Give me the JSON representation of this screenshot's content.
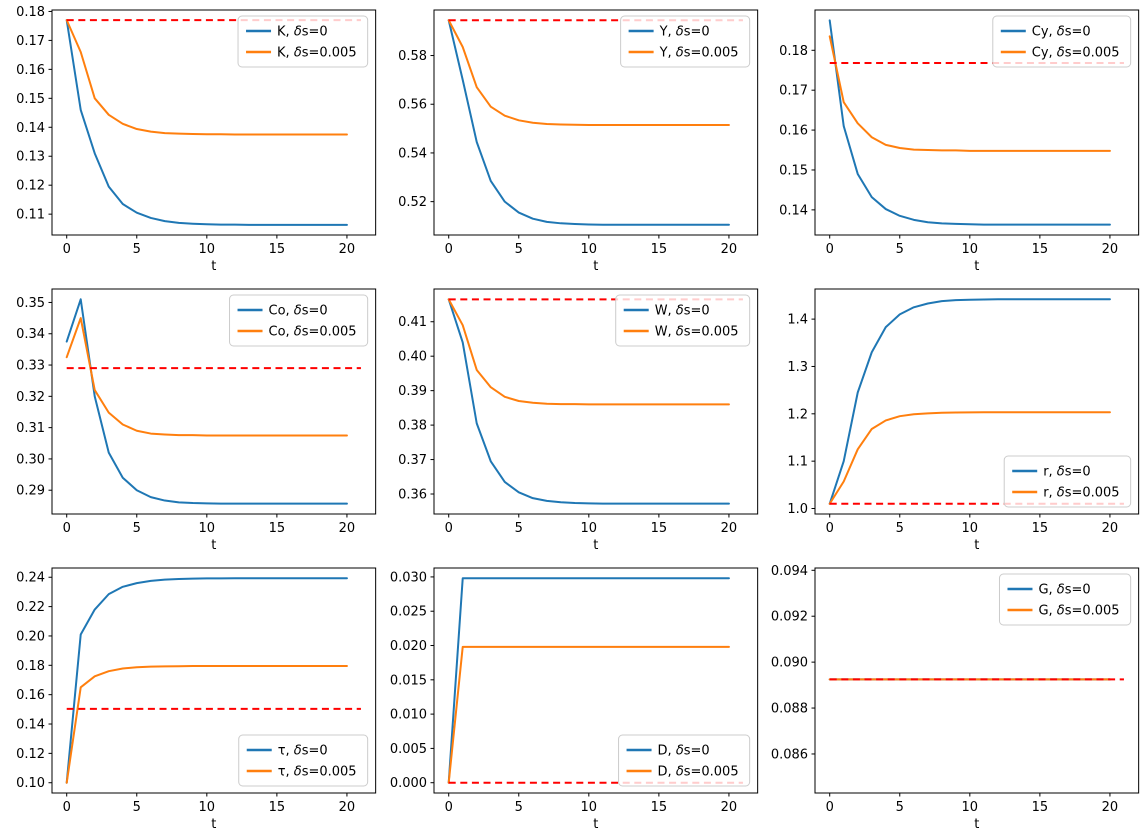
{
  "figure": {
    "background": "#ffffff",
    "xlabel": "t",
    "x": [
      0,
      1,
      2,
      3,
      4,
      5,
      6,
      7,
      8,
      9,
      10,
      11,
      12,
      13,
      14,
      15,
      16,
      17,
      18,
      19,
      20
    ],
    "xlim": [
      -1.05,
      22.05
    ],
    "xticks": [
      0,
      5,
      10,
      15,
      20
    ],
    "xtick_labels": [
      "0",
      "5",
      "10",
      "15",
      "20"
    ],
    "reference_extent": [
      0,
      21
    ],
    "colors": {
      "series_delta0": "#1f77b4",
      "series_delta005": "#ff7f0e",
      "reference": "#ff0000",
      "axis": "#000000",
      "legend_border": "#cccccc",
      "legend_fill_alpha": 0.8
    },
    "grid": "off",
    "rows": 3,
    "cols": 3
  },
  "chart_data": [
    {
      "type": "line",
      "variable": "K",
      "xlabel": "t",
      "legend_loc": "upper-right",
      "ylim": [
        0.1028,
        0.1805
      ],
      "ytick_values": [
        0.11,
        0.12,
        0.13,
        0.14,
        0.15,
        0.16,
        0.17,
        0.18
      ],
      "ytick_labels": [
        "0.11",
        "0.12",
        "0.13",
        "0.14",
        "0.15",
        "0.16",
        "0.17",
        "0.18"
      ],
      "reference_line": {
        "y": 0.177,
        "style": "dashed",
        "color": "#ff0000"
      },
      "series": [
        {
          "name": "K, δs=0",
          "color": "#1f77b4",
          "values": [
            0.177,
            0.146,
            0.131,
            0.1195,
            0.1135,
            0.1105,
            0.1087,
            0.1076,
            0.107,
            0.1067,
            0.1065,
            0.1064,
            0.1064,
            0.1063,
            0.1063,
            0.1063,
            0.1063,
            0.1063,
            0.1063,
            0.1063,
            0.1063
          ]
        },
        {
          "name": "K, δs=0.005",
          "color": "#ff7f0e",
          "values": [
            0.177,
            0.166,
            0.15,
            0.1443,
            0.1412,
            0.1394,
            0.1385,
            0.138,
            0.1378,
            0.1377,
            0.1376,
            0.1376,
            0.1375,
            0.1375,
            0.1375,
            0.1375,
            0.1375,
            0.1375,
            0.1375,
            0.1375,
            0.1375
          ]
        }
      ]
    },
    {
      "type": "line",
      "variable": "Y",
      "xlabel": "t",
      "legend_loc": "upper-right",
      "ylim": [
        0.5063,
        0.5987
      ],
      "ytick_values": [
        0.52,
        0.54,
        0.56,
        0.58
      ],
      "ytick_labels": [
        "0.52",
        "0.54",
        "0.56",
        "0.58"
      ],
      "reference_line": {
        "y": 0.5945,
        "style": "dashed",
        "color": "#ff0000"
      },
      "series": [
        {
          "name": "Y, δs=0",
          "color": "#1f77b4",
          "values": [
            0.5945,
            0.57,
            0.5445,
            0.5285,
            0.52,
            0.5155,
            0.513,
            0.5117,
            0.5111,
            0.5108,
            0.5106,
            0.5105,
            0.5105,
            0.5105,
            0.5105,
            0.5105,
            0.5105,
            0.5105,
            0.5105,
            0.5105,
            0.5105
          ]
        },
        {
          "name": "Y, δs=0.005",
          "color": "#ff7f0e",
          "values": [
            0.5945,
            0.5835,
            0.567,
            0.559,
            0.5553,
            0.5534,
            0.5524,
            0.5519,
            0.5517,
            0.5516,
            0.5515,
            0.5515,
            0.5515,
            0.5515,
            0.5515,
            0.5515,
            0.5515,
            0.5515,
            0.5515,
            0.5515,
            0.5515
          ]
        }
      ]
    },
    {
      "type": "line",
      "variable": "Cy",
      "xlabel": "t",
      "legend_loc": "upper-right",
      "ylim": [
        0.1337,
        0.1901
      ],
      "ytick_values": [
        0.14,
        0.15,
        0.16,
        0.17,
        0.18
      ],
      "ytick_labels": [
        "0.14",
        "0.15",
        "0.16",
        "0.17",
        "0.18"
      ],
      "reference_line": {
        "y": 0.1768,
        "style": "dashed",
        "color": "#ff0000"
      },
      "series": [
        {
          "name": "Cy, δs=0",
          "color": "#1f77b4",
          "values": [
            0.1875,
            0.161,
            0.149,
            0.1432,
            0.1402,
            0.1385,
            0.1375,
            0.1369,
            0.1366,
            0.1365,
            0.1364,
            0.1363,
            0.1363,
            0.1363,
            0.1363,
            0.1363,
            0.1363,
            0.1363,
            0.1363,
            0.1363,
            0.1363
          ]
        },
        {
          "name": "Cy, δs=0.005",
          "color": "#ff7f0e",
          "values": [
            0.1835,
            0.167,
            0.1617,
            0.1582,
            0.1563,
            0.1555,
            0.1551,
            0.155,
            0.1549,
            0.1549,
            0.1548,
            0.1548,
            0.1548,
            0.1548,
            0.1548,
            0.1548,
            0.1548,
            0.1548,
            0.1548,
            0.1548,
            0.1548
          ]
        }
      ]
    },
    {
      "type": "line",
      "variable": "Co",
      "xlabel": "t",
      "legend_loc": "upper-right",
      "ylim": [
        0.2824,
        0.3543
      ],
      "ytick_values": [
        0.29,
        0.3,
        0.31,
        0.32,
        0.33,
        0.34,
        0.35
      ],
      "ytick_labels": [
        "0.29",
        "0.30",
        "0.31",
        "0.32",
        "0.33",
        "0.34",
        "0.35"
      ],
      "reference_line": {
        "y": 0.329,
        "style": "dashed",
        "color": "#ff0000"
      },
      "series": [
        {
          "name": "Co, δs=0",
          "color": "#1f77b4",
          "values": [
            0.3375,
            0.351,
            0.32,
            0.302,
            0.294,
            0.29,
            0.2878,
            0.2867,
            0.2861,
            0.2859,
            0.2858,
            0.2857,
            0.2857,
            0.2857,
            0.2857,
            0.2857,
            0.2857,
            0.2857,
            0.2857,
            0.2857,
            0.2857
          ]
        },
        {
          "name": "Co, δs=0.005",
          "color": "#ff7f0e",
          "values": [
            0.3325,
            0.345,
            0.322,
            0.3148,
            0.311,
            0.309,
            0.3081,
            0.3078,
            0.3076,
            0.3076,
            0.3075,
            0.3075,
            0.3075,
            0.3075,
            0.3075,
            0.3075,
            0.3075,
            0.3075,
            0.3075,
            0.3075,
            0.3075
          ]
        }
      ]
    },
    {
      "type": "line",
      "variable": "W",
      "xlabel": "t",
      "legend_loc": "upper-right",
      "ylim": [
        0.3542,
        0.4195
      ],
      "ytick_values": [
        0.36,
        0.37,
        0.38,
        0.39,
        0.4,
        0.41
      ],
      "ytick_labels": [
        "0.36",
        "0.37",
        "0.38",
        "0.39",
        "0.40",
        "0.41"
      ],
      "reference_line": {
        "y": 0.4165,
        "style": "dashed",
        "color": "#ff0000"
      },
      "series": [
        {
          "name": "W, δs=0",
          "color": "#1f77b4",
          "values": [
            0.4165,
            0.404,
            0.3805,
            0.3695,
            0.3635,
            0.3605,
            0.3588,
            0.358,
            0.3576,
            0.3574,
            0.3573,
            0.3572,
            0.3572,
            0.3572,
            0.3572,
            0.3572,
            0.3572,
            0.3572,
            0.3572,
            0.3572,
            0.3572
          ]
        },
        {
          "name": "W, δs=0.005",
          "color": "#ff7f0e",
          "values": [
            0.4165,
            0.409,
            0.396,
            0.391,
            0.3882,
            0.387,
            0.3865,
            0.3862,
            0.3861,
            0.3861,
            0.386,
            0.386,
            0.386,
            0.386,
            0.386,
            0.386,
            0.386,
            0.386,
            0.386,
            0.386,
            0.386
          ]
        }
      ]
    },
    {
      "type": "line",
      "variable": "r",
      "xlabel": "t",
      "legend_loc": "lower-right",
      "ylim": [
        0.9884,
        1.4636
      ],
      "ytick_values": [
        1.0,
        1.1,
        1.2,
        1.3,
        1.4
      ],
      "ytick_labels": [
        "1.0",
        "1.1",
        "1.2",
        "1.3",
        "1.4"
      ],
      "reference_line": {
        "y": 1.01,
        "style": "dashed",
        "color": "#ff0000"
      },
      "series": [
        {
          "name": "r, δs=0",
          "color": "#1f77b4",
          "values": [
            1.01,
            1.1,
            1.245,
            1.33,
            1.383,
            1.41,
            1.425,
            1.433,
            1.438,
            1.44,
            1.441,
            1.4415,
            1.442,
            1.442,
            1.442,
            1.442,
            1.442,
            1.442,
            1.442,
            1.442,
            1.442
          ]
        },
        {
          "name": "r, δs=0.005",
          "color": "#ff7f0e",
          "values": [
            1.01,
            1.057,
            1.125,
            1.168,
            1.186,
            1.195,
            1.199,
            1.201,
            1.2022,
            1.2028,
            1.2031,
            1.2032,
            1.2033,
            1.2033,
            1.2033,
            1.2033,
            1.2033,
            1.2033,
            1.2033,
            1.2033,
            1.2033
          ]
        }
      ]
    },
    {
      "type": "line",
      "variable": "τ",
      "xlabel": "t",
      "legend_loc": "lower-right",
      "ylim": [
        0.093,
        0.2463
      ],
      "ytick_values": [
        0.1,
        0.12,
        0.14,
        0.16,
        0.18,
        0.2,
        0.22,
        0.24
      ],
      "ytick_labels": [
        "0.10",
        "0.12",
        "0.14",
        "0.16",
        "0.18",
        "0.20",
        "0.22",
        "0.24"
      ],
      "reference_line": {
        "y": 0.1503,
        "style": "dashed",
        "color": "#ff0000"
      },
      "series": [
        {
          "name": "τ, δs=0",
          "color": "#1f77b4",
          "values": [
            0.1,
            0.201,
            0.218,
            0.2285,
            0.2335,
            0.236,
            0.2375,
            0.2384,
            0.2388,
            0.2391,
            0.2392,
            0.2392,
            0.2393,
            0.2393,
            0.2393,
            0.2393,
            0.2393,
            0.2393,
            0.2393,
            0.2393,
            0.2393
          ]
        },
        {
          "name": "τ, δs=0.005",
          "color": "#ff7f0e",
          "values": [
            0.1,
            0.165,
            0.1725,
            0.176,
            0.1778,
            0.1787,
            0.1791,
            0.1793,
            0.1794,
            0.1795,
            0.1795,
            0.1795,
            0.1795,
            0.1795,
            0.1795,
            0.1795,
            0.1795,
            0.1795,
            0.1795,
            0.1795,
            0.1795
          ]
        }
      ]
    },
    {
      "type": "line",
      "variable": "D",
      "xlabel": "t",
      "legend_loc": "lower-right",
      "ylim": [
        -0.0015,
        0.0313
      ],
      "ytick_values": [
        0.0,
        0.005,
        0.01,
        0.015,
        0.02,
        0.025,
        0.03
      ],
      "ytick_labels": [
        "0.000",
        "0.005",
        "0.010",
        "0.015",
        "0.020",
        "0.025",
        "0.030"
      ],
      "reference_line": {
        "y": 0.0,
        "style": "dashed",
        "color": "#ff0000"
      },
      "series": [
        {
          "name": "D, δs=0",
          "color": "#1f77b4",
          "values": [
            0,
            0.0298,
            0.0298,
            0.0298,
            0.0298,
            0.0298,
            0.0298,
            0.0298,
            0.0298,
            0.0298,
            0.0298,
            0.0298,
            0.0298,
            0.0298,
            0.0298,
            0.0298,
            0.0298,
            0.0298,
            0.0298,
            0.0298,
            0.0298
          ]
        },
        {
          "name": "D, δs=0.005",
          "color": "#ff7f0e",
          "values": [
            0,
            0.0198,
            0.0198,
            0.0198,
            0.0198,
            0.0198,
            0.0198,
            0.0198,
            0.0198,
            0.0198,
            0.0198,
            0.0198,
            0.0198,
            0.0198,
            0.0198,
            0.0198,
            0.0198,
            0.0198,
            0.0198,
            0.0198,
            0.0198
          ]
        }
      ]
    },
    {
      "type": "line",
      "variable": "G",
      "xlabel": "t",
      "legend_loc": "upper-right",
      "ylim": [
        0.0843,
        0.0941
      ],
      "ytick_values": [
        0.086,
        0.088,
        0.09,
        0.092,
        0.094
      ],
      "ytick_labels": [
        "0.086",
        "0.088",
        "0.090",
        "0.092",
        "0.094"
      ],
      "reference_line": {
        "y": 0.08925,
        "style": "dashed",
        "color": "#ff0000"
      },
      "series": [
        {
          "name": "G, δs=0",
          "color": "#1f77b4",
          "values": [
            0.08925,
            0.08925,
            0.08925,
            0.08925,
            0.08925,
            0.08925,
            0.08925,
            0.08925,
            0.08925,
            0.08925,
            0.08925,
            0.08925,
            0.08925,
            0.08925,
            0.08925,
            0.08925,
            0.08925,
            0.08925,
            0.08925,
            0.08925,
            0.08925
          ]
        },
        {
          "name": "G, δs=0.005",
          "color": "#ff7f0e",
          "values": [
            0.08925,
            0.08925,
            0.08925,
            0.08925,
            0.08925,
            0.08925,
            0.08925,
            0.08925,
            0.08925,
            0.08925,
            0.08925,
            0.08925,
            0.08925,
            0.08925,
            0.08925,
            0.08925,
            0.08925,
            0.08925,
            0.08925,
            0.08925,
            0.08925
          ]
        }
      ]
    }
  ]
}
